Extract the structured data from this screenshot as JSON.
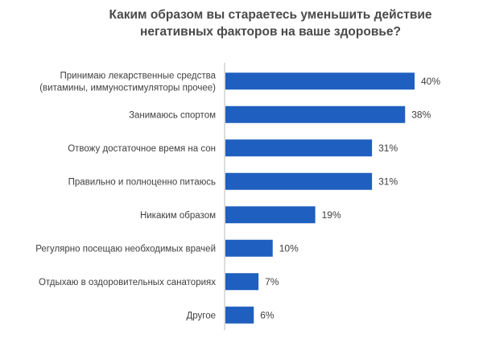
{
  "chart_data": {
    "type": "bar",
    "orientation": "horizontal",
    "title_lines": [
      "Каким образом вы стараетесь уменьшить действие",
      "негативных факторов на ваше здоровье?"
    ],
    "categories": [
      [
        "Принимаю лекарственные средства",
        "(витамины, иммуностимуляторы прочее)"
      ],
      [
        "Занимаюсь спортом"
      ],
      [
        "Отвожу достаточное время на сон"
      ],
      [
        "Правильно и полноценно питаюсь"
      ],
      [
        "Никаким образом"
      ],
      [
        "Регулярно посещаю необходимых врачей"
      ],
      [
        "Отдыхаю в оздоровительных санаториях"
      ],
      [
        "Другое"
      ]
    ],
    "values": [
      40,
      38,
      31,
      31,
      19,
      10,
      7,
      6
    ],
    "value_labels": [
      "40%",
      "38%",
      "31%",
      "31%",
      "19%",
      "10%",
      "7%",
      "6%"
    ],
    "xlim": [
      0,
      40
    ],
    "bar_color": "#1f5fbf",
    "grid": false,
    "legend": "none"
  }
}
